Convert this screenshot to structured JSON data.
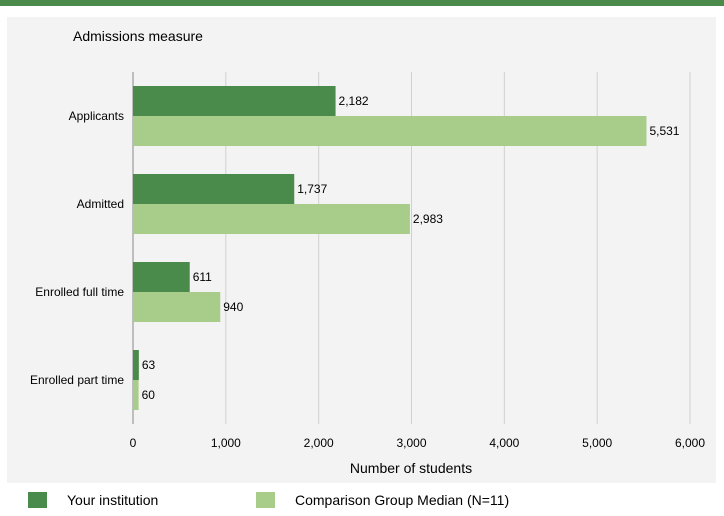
{
  "chart_data": {
    "type": "bar",
    "orientation": "horizontal",
    "title": "Admissions measure",
    "xlabel": "Number of students",
    "ylabel": "",
    "categories": [
      "Applicants",
      "Admitted",
      "Enrolled full time",
      "Enrolled part time"
    ],
    "series": [
      {
        "name": "Your institution",
        "values": [
          2182,
          1737,
          611,
          63
        ],
        "labels": [
          "2,182",
          "1,737",
          "611",
          "63"
        ],
        "color": "#4a8a4a"
      },
      {
        "name": "Comparison Group Median (N=11)",
        "values": [
          5531,
          2983,
          940,
          60
        ],
        "labels": [
          "5,531",
          "2,983",
          "940",
          "60"
        ],
        "color": "#a8cc8a"
      }
    ],
    "xlim": [
      0,
      6000
    ],
    "xticks": [
      0,
      1000,
      2000,
      3000,
      4000,
      5000,
      6000
    ],
    "xtick_labels": [
      "0",
      "1,000",
      "2,000",
      "3,000",
      "4,000",
      "5,000",
      "6,000"
    ],
    "grid": true,
    "legend_position": "bottom"
  },
  "colors": {
    "accent": "#4a8a4a",
    "panel_background": "#f3f3f3",
    "gridline": "#d0d0d0"
  }
}
